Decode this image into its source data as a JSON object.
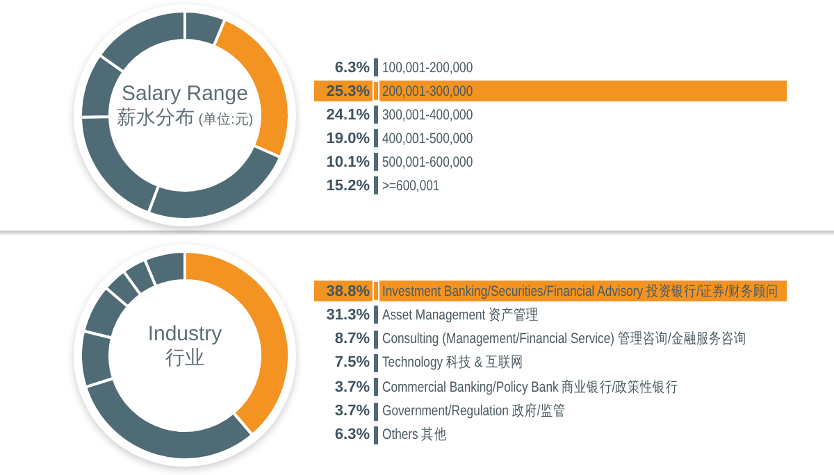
{
  "chart_data": [
    {
      "type": "donut",
      "title": "Salary Range",
      "subtitle": "薪水分布",
      "annotations": [
        "(单位:元)"
      ],
      "categories": [
        "100,001-200,000",
        "200,001-300,000",
        "300,001-400,000",
        "400,001-500,000",
        "500,001-600,000",
        ">=600,001"
      ],
      "values": [
        6.3,
        25.3,
        24.1,
        19.0,
        10.1,
        15.2
      ],
      "value_labels": [
        "6.3%",
        "25.3%",
        "24.1%",
        "19.0%",
        "10.1%",
        "15.2%"
      ],
      "colors": [
        "#4e6b76",
        "#f39322",
        "#4e6b76",
        "#4e6b76",
        "#4e6b76",
        "#4e6b76"
      ],
      "legend": "right"
    },
    {
      "type": "donut",
      "title": "Industry",
      "subtitle": "行业",
      "categories": [
        "Investment Banking/Securities/Financial Advisory 投资银行/证券/财务顾问",
        "Asset Management 资产管理",
        "Consulting (Management/Financial Service) 管理咨询/金融服务咨询",
        "Technology 科技 & 互联网",
        "Commercial Banking/Policy Bank 商业银行/政策性银行",
        "Government/Regulation 政府/监管",
        "Others 其他"
      ],
      "values": [
        38.8,
        31.3,
        8.7,
        7.5,
        3.7,
        3.7,
        6.3
      ],
      "value_labels": [
        "38.8%",
        "31.3%",
        "8.7%",
        "7.5%",
        "3.7%",
        "3.7%",
        "6.3%"
      ],
      "colors": [
        "#f39322",
        "#4e6b76",
        "#4e6b76",
        "#4e6b76",
        "#4e6b76",
        "#4e6b76",
        "#4e6b76"
      ],
      "legend": "right"
    }
  ]
}
